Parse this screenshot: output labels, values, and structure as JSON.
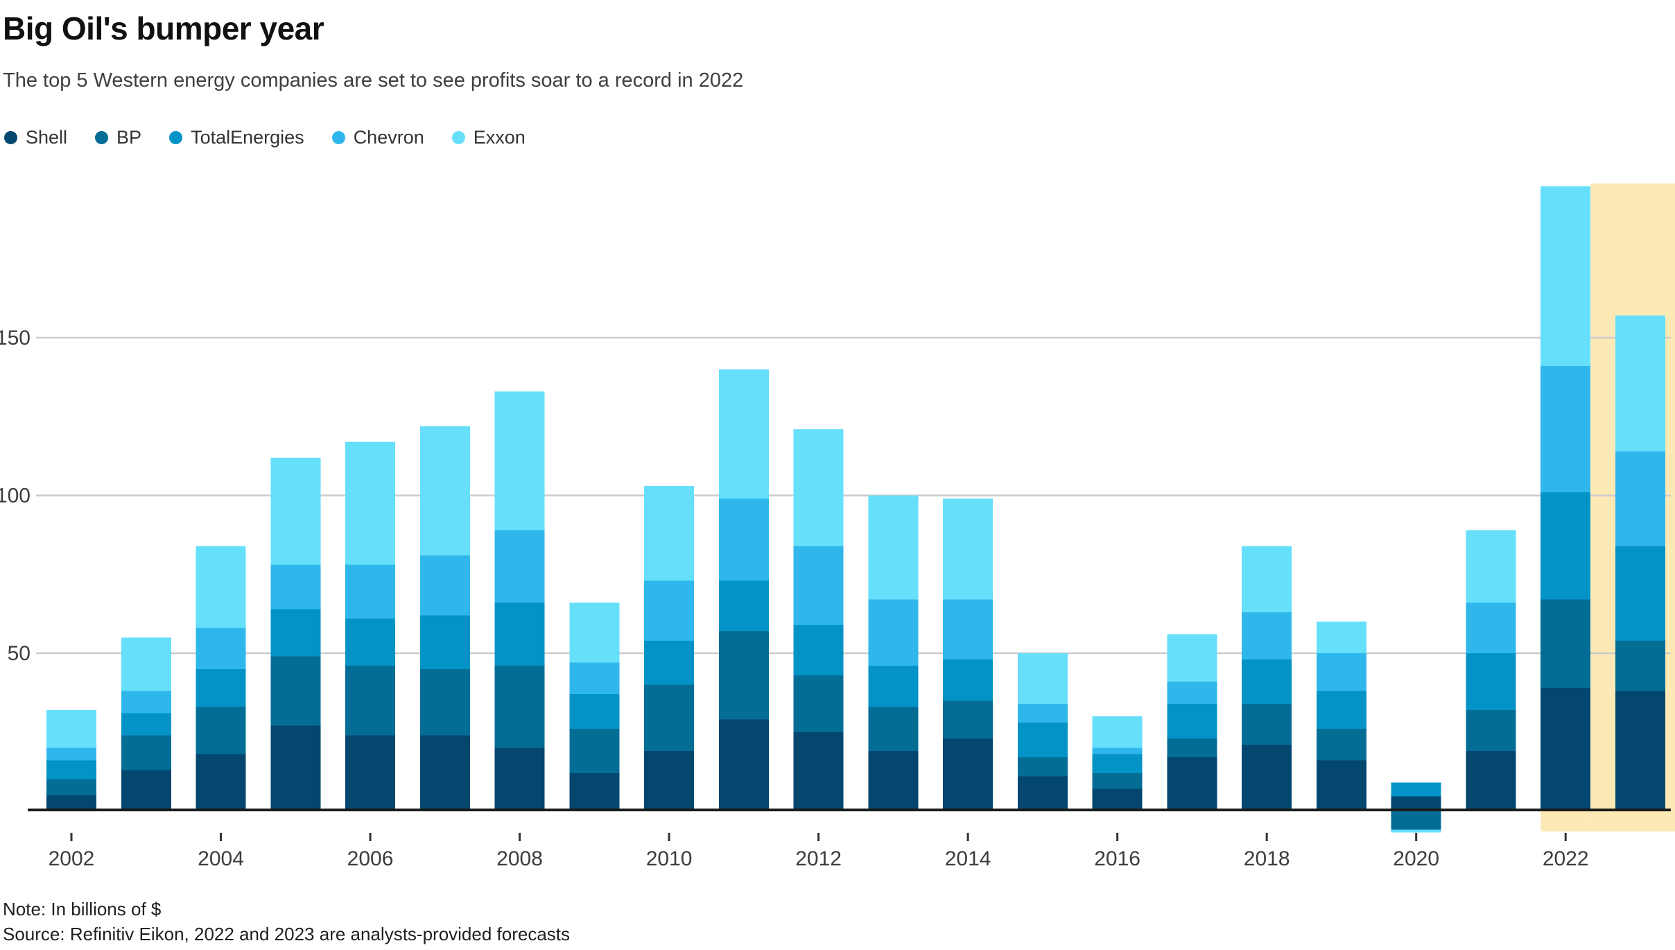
{
  "title": "Big Oil's bumper year",
  "subtitle": "The top 5 Western energy companies are set to see profits soar to a record in 2022",
  "note": "Note: In billions of $",
  "source": "Source: Refinitiv Eikon, 2022 and 2023 are analysts-provided forecasts",
  "colors": {
    "background": "#ffffff",
    "grid": "#cbcbcb",
    "axis": "#1a1a1a",
    "tick": "#333333",
    "tick_label": "#3d3d3d",
    "highlight": "#fde9b5"
  },
  "chart_data": {
    "type": "bar",
    "stacked": true,
    "title": "Big Oil's bumper year",
    "subtitle": "The top 5 Western energy companies are set to see profits soar to a record in 2022",
    "unit": "billions of $",
    "x": [
      2002,
      2003,
      2004,
      2005,
      2006,
      2007,
      2008,
      2009,
      2010,
      2011,
      2012,
      2013,
      2014,
      2015,
      2016,
      2017,
      2018,
      2019,
      2020,
      2021,
      2022,
      2023
    ],
    "series": [
      {
        "name": "Shell",
        "color": "#03466e",
        "values": [
          5,
          13,
          18,
          27,
          24,
          24,
          20,
          12,
          19,
          29,
          25,
          19,
          23,
          11,
          7,
          17,
          21,
          16,
          4.6,
          19,
          39,
          38
        ]
      },
      {
        "name": "BP",
        "color": "#046d96",
        "values": [
          5,
          11,
          15,
          22,
          22,
          21,
          26,
          14,
          21,
          28,
          18,
          14,
          12,
          6,
          5,
          6,
          13,
          10,
          -5.9,
          13,
          28,
          16
        ]
      },
      {
        "name": "TotalEnergies",
        "color": "#0493c6",
        "values": [
          6,
          7,
          12,
          15,
          15,
          17,
          20,
          11,
          14,
          16,
          16,
          13,
          13,
          11,
          6,
          11,
          14,
          12,
          4.4,
          18,
          34,
          30
        ]
      },
      {
        "name": "Chevron",
        "color": "#2fb7eb",
        "values": [
          4,
          7,
          13,
          14,
          17,
          19,
          23,
          10,
          19,
          26,
          25,
          21,
          19,
          6,
          2,
          7,
          15,
          12,
          0,
          16,
          40,
          30
        ]
      },
      {
        "name": "Exxon",
        "color": "#66dffb",
        "values": [
          12,
          17,
          26,
          34,
          39,
          41,
          44,
          19,
          30,
          41,
          37,
          33,
          32,
          16,
          10,
          15,
          21,
          10,
          -0.9,
          23,
          57,
          43
        ]
      }
    ],
    "x_tick_labels": [
      "2002",
      "2004",
      "2006",
      "2008",
      "2010",
      "2012",
      "2014",
      "2016",
      "2018",
      "2020",
      "2022"
    ],
    "y_ticks": [
      50,
      100,
      150
    ],
    "y_tick_labels": [
      "50",
      "100",
      "150"
    ],
    "ylim": [
      -10,
      225
    ],
    "grid": "horizontal",
    "legend_position": "top-left",
    "highlight": {
      "years": [
        2022,
        2023
      ],
      "color": "#fde9b5",
      "meaning": "analysts-provided forecasts"
    }
  }
}
